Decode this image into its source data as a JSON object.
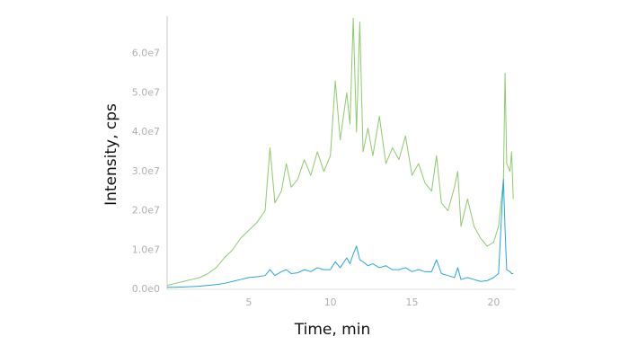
{
  "chart_data": {
    "type": "line",
    "x_label": "Time, min",
    "y_label": "Intensity, cps",
    "x": [
      0,
      0.5,
      1,
      1.5,
      2,
      2.5,
      3,
      3.5,
      4,
      4.5,
      5,
      5.5,
      6,
      6.3,
      6.6,
      7,
      7.3,
      7.6,
      8,
      8.4,
      8.8,
      9.2,
      9.6,
      10,
      10.3,
      10.6,
      11,
      11.2,
      11.4,
      11.6,
      11.8,
      12,
      12.3,
      12.6,
      13,
      13.4,
      13.8,
      14.2,
      14.6,
      15,
      15.4,
      15.8,
      16.2,
      16.5,
      16.8,
      17.2,
      17.6,
      17.8,
      18,
      18.4,
      18.8,
      19.2,
      19.6,
      20,
      20.3,
      20.6,
      20.7,
      20.8,
      21,
      21.1,
      21.2
    ],
    "series": [
      {
        "color": "#8fca6c",
        "values": [
          1000000,
          1500000,
          2000000,
          2500000,
          3000000,
          4000000,
          5500000,
          8000000,
          10000000,
          13000000,
          15000000,
          17000000,
          20000000,
          36000000,
          22000000,
          25000000,
          32000000,
          26000000,
          28000000,
          33000000,
          29000000,
          35000000,
          30000000,
          34000000,
          53000000,
          38000000,
          50000000,
          42000000,
          69000000,
          40000000,
          68000000,
          35000000,
          41000000,
          34000000,
          44000000,
          32000000,
          36000000,
          33000000,
          39000000,
          29000000,
          32000000,
          27000000,
          25000000,
          34000000,
          22000000,
          20000000,
          26000000,
          30000000,
          16000000,
          23000000,
          16000000,
          13000000,
          11000000,
          12000000,
          16000000,
          28000000,
          55000000,
          32000000,
          30000000,
          35000000,
          23000000
        ]
      },
      {
        "color": "#2aa4e0",
        "values": [
          500000,
          500000,
          600000,
          700000,
          800000,
          1000000,
          1200000,
          1500000,
          2000000,
          2500000,
          3000000,
          3200000,
          3500000,
          5000000,
          3500000,
          4500000,
          5000000,
          4000000,
          4200000,
          5000000,
          4500000,
          5500000,
          5000000,
          5000000,
          7000000,
          5500000,
          8000000,
          6500000,
          9000000,
          11000000,
          7500000,
          7000000,
          6000000,
          6500000,
          5500000,
          6000000,
          5000000,
          5000000,
          5500000,
          4500000,
          5000000,
          4500000,
          4500000,
          7500000,
          4000000,
          3500000,
          3000000,
          5500000,
          2500000,
          3000000,
          2500000,
          2000000,
          2200000,
          3000000,
          4000000,
          28000000,
          15000000,
          5000000,
          4500000,
          4000000,
          4000000
        ]
      }
    ],
    "xlim": [
      0,
      21.3
    ],
    "ylim": [
      0,
      69500000
    ],
    "xticks": [
      5,
      10,
      15,
      20
    ],
    "yticks": [
      {
        "value": 0,
        "label": "0.0e0"
      },
      {
        "value": 10000000,
        "label": "1.0e7"
      },
      {
        "value": 20000000,
        "label": "2.0e7"
      },
      {
        "value": 30000000,
        "label": "3.0e7"
      },
      {
        "value": 40000000,
        "label": "4.0e7"
      },
      {
        "value": 50000000,
        "label": "5.0e7"
      },
      {
        "value": 60000000,
        "label": "6.0e7"
      }
    ]
  }
}
